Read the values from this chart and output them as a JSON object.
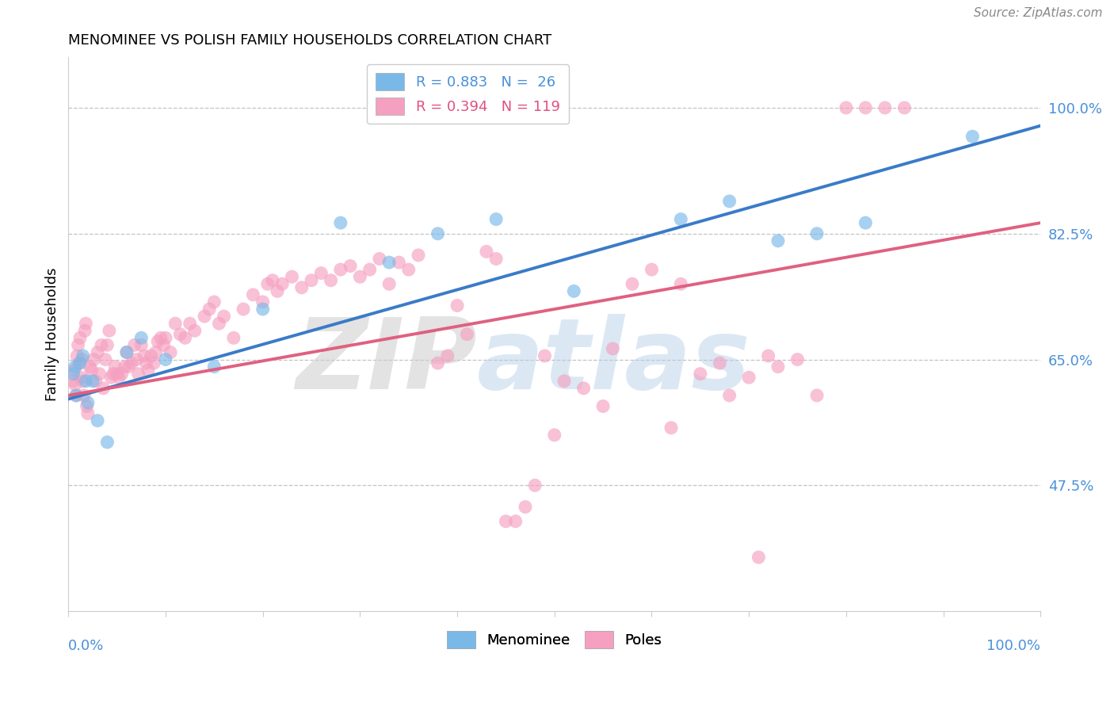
{
  "title": "MENOMINEE VS POLISH FAMILY HOUSEHOLDS CORRELATION CHART",
  "source": "Source: ZipAtlas.com",
  "ylabel": "Family Households",
  "ytick_labels": [
    "47.5%",
    "65.0%",
    "82.5%",
    "100.0%"
  ],
  "ytick_values": [
    0.475,
    0.65,
    0.825,
    1.0
  ],
  "legend_entries": [
    {
      "label": "R = 0.883   N =  26",
      "color": "#4a90d9"
    },
    {
      "label": "R = 0.394   N = 119",
      "color": "#e05080"
    }
  ],
  "legend_bottom": [
    "Menominee",
    "Poles"
  ],
  "blue_scatter_color": "#7ab8e8",
  "pink_scatter_color": "#f5a0c0",
  "blue_line_color": "#3a7bc8",
  "pink_line_color": "#e06080",
  "blue_text_color": "#4a90d9",
  "pink_text_color": "#e05080",
  "watermark_text": "ZIPatlas",
  "menominee_points": [
    [
      0.005,
      0.63
    ],
    [
      0.007,
      0.64
    ],
    [
      0.008,
      0.6
    ],
    [
      0.012,
      0.645
    ],
    [
      0.015,
      0.655
    ],
    [
      0.018,
      0.62
    ],
    [
      0.02,
      0.59
    ],
    [
      0.025,
      0.62
    ],
    [
      0.03,
      0.565
    ],
    [
      0.04,
      0.535
    ],
    [
      0.06,
      0.66
    ],
    [
      0.075,
      0.68
    ],
    [
      0.1,
      0.65
    ],
    [
      0.15,
      0.64
    ],
    [
      0.2,
      0.72
    ],
    [
      0.28,
      0.84
    ],
    [
      0.33,
      0.785
    ],
    [
      0.38,
      0.825
    ],
    [
      0.44,
      0.845
    ],
    [
      0.52,
      0.745
    ],
    [
      0.63,
      0.845
    ],
    [
      0.68,
      0.87
    ],
    [
      0.73,
      0.815
    ],
    [
      0.77,
      0.825
    ],
    [
      0.82,
      0.84
    ],
    [
      0.93,
      0.96
    ]
  ],
  "poles_points": [
    [
      0.005,
      0.62
    ],
    [
      0.006,
      0.635
    ],
    [
      0.007,
      0.615
    ],
    [
      0.008,
      0.6
    ],
    [
      0.009,
      0.655
    ],
    [
      0.01,
      0.67
    ],
    [
      0.011,
      0.645
    ],
    [
      0.012,
      0.68
    ],
    [
      0.013,
      0.625
    ],
    [
      0.014,
      0.65
    ],
    [
      0.015,
      0.62
    ],
    [
      0.016,
      0.6
    ],
    [
      0.017,
      0.69
    ],
    [
      0.018,
      0.7
    ],
    [
      0.019,
      0.585
    ],
    [
      0.02,
      0.575
    ],
    [
      0.022,
      0.64
    ],
    [
      0.024,
      0.635
    ],
    [
      0.026,
      0.65
    ],
    [
      0.028,
      0.62
    ],
    [
      0.03,
      0.66
    ],
    [
      0.032,
      0.63
    ],
    [
      0.034,
      0.67
    ],
    [
      0.036,
      0.61
    ],
    [
      0.038,
      0.65
    ],
    [
      0.04,
      0.67
    ],
    [
      0.042,
      0.69
    ],
    [
      0.044,
      0.625
    ],
    [
      0.046,
      0.63
    ],
    [
      0.048,
      0.64
    ],
    [
      0.05,
      0.63
    ],
    [
      0.052,
      0.625
    ],
    [
      0.055,
      0.63
    ],
    [
      0.058,
      0.64
    ],
    [
      0.06,
      0.66
    ],
    [
      0.062,
      0.64
    ],
    [
      0.065,
      0.645
    ],
    [
      0.068,
      0.67
    ],
    [
      0.07,
      0.65
    ],
    [
      0.072,
      0.63
    ],
    [
      0.075,
      0.67
    ],
    [
      0.078,
      0.655
    ],
    [
      0.08,
      0.645
    ],
    [
      0.082,
      0.635
    ],
    [
      0.085,
      0.655
    ],
    [
      0.088,
      0.645
    ],
    [
      0.09,
      0.66
    ],
    [
      0.092,
      0.675
    ],
    [
      0.095,
      0.68
    ],
    [
      0.098,
      0.67
    ],
    [
      0.1,
      0.68
    ],
    [
      0.105,
      0.66
    ],
    [
      0.11,
      0.7
    ],
    [
      0.115,
      0.685
    ],
    [
      0.12,
      0.68
    ],
    [
      0.125,
      0.7
    ],
    [
      0.13,
      0.69
    ],
    [
      0.14,
      0.71
    ],
    [
      0.145,
      0.72
    ],
    [
      0.15,
      0.73
    ],
    [
      0.155,
      0.7
    ],
    [
      0.16,
      0.71
    ],
    [
      0.17,
      0.68
    ],
    [
      0.18,
      0.72
    ],
    [
      0.19,
      0.74
    ],
    [
      0.2,
      0.73
    ],
    [
      0.205,
      0.755
    ],
    [
      0.21,
      0.76
    ],
    [
      0.215,
      0.745
    ],
    [
      0.22,
      0.755
    ],
    [
      0.23,
      0.765
    ],
    [
      0.24,
      0.75
    ],
    [
      0.25,
      0.76
    ],
    [
      0.26,
      0.77
    ],
    [
      0.27,
      0.76
    ],
    [
      0.28,
      0.775
    ],
    [
      0.29,
      0.78
    ],
    [
      0.3,
      0.765
    ],
    [
      0.31,
      0.775
    ],
    [
      0.32,
      0.79
    ],
    [
      0.33,
      0.755
    ],
    [
      0.34,
      0.785
    ],
    [
      0.35,
      0.775
    ],
    [
      0.36,
      0.795
    ],
    [
      0.38,
      0.645
    ],
    [
      0.39,
      0.655
    ],
    [
      0.4,
      0.725
    ],
    [
      0.41,
      0.685
    ],
    [
      0.43,
      0.8
    ],
    [
      0.44,
      0.79
    ],
    [
      0.46,
      0.425
    ],
    [
      0.47,
      0.445
    ],
    [
      0.49,
      0.655
    ],
    [
      0.51,
      0.62
    ],
    [
      0.53,
      0.61
    ],
    [
      0.56,
      0.665
    ],
    [
      0.58,
      0.755
    ],
    [
      0.6,
      0.775
    ],
    [
      0.63,
      0.755
    ],
    [
      0.65,
      0.63
    ],
    [
      0.67,
      0.645
    ],
    [
      0.7,
      0.625
    ],
    [
      0.72,
      0.655
    ],
    [
      0.73,
      0.64
    ],
    [
      0.75,
      0.65
    ],
    [
      0.77,
      0.6
    ],
    [
      0.55,
      0.585
    ],
    [
      0.5,
      0.545
    ],
    [
      0.48,
      0.475
    ],
    [
      0.45,
      0.425
    ],
    [
      0.62,
      0.555
    ],
    [
      0.68,
      0.6
    ],
    [
      0.71,
      0.375
    ],
    [
      0.8,
      1.0
    ],
    [
      0.82,
      1.0
    ],
    [
      0.84,
      1.0
    ],
    [
      0.86,
      1.0
    ]
  ],
  "blue_line_x": [
    0.0,
    1.0
  ],
  "blue_line_y": [
    0.595,
    0.975
  ],
  "pink_line_x": [
    0.0,
    1.0
  ],
  "pink_line_y": [
    0.6,
    0.84
  ],
  "xlim": [
    0.0,
    1.0
  ],
  "ylim": [
    0.3,
    1.07
  ]
}
